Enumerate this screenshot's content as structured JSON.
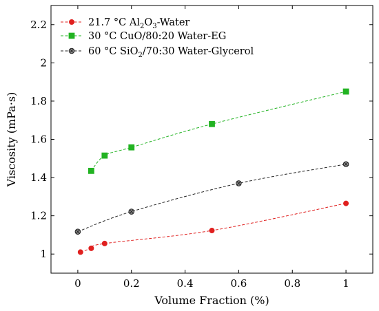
{
  "chart_data": {
    "type": "line",
    "xlabel": "Volume Fraction (%)",
    "ylabel": "Viscosity (mPa·s)",
    "xlim": [
      -0.1,
      1.1
    ],
    "ylim": [
      0.9,
      2.3
    ],
    "x_ticks": [
      0,
      0.2,
      0.4,
      0.6,
      0.8,
      1
    ],
    "x_tick_labels": [
      "0",
      "0.2",
      "0.4",
      "0.6",
      "0.8",
      "1"
    ],
    "y_ticks": [
      1.0,
      1.2,
      1.4,
      1.6,
      1.8,
      2.0,
      2.2
    ],
    "y_tick_labels": [
      "1",
      "1.2",
      "1.4",
      "1.6",
      "1.8",
      "2",
      "2.2"
    ],
    "grid": false,
    "legend_position": "top-left",
    "series": [
      {
        "name_parts": [
          "21.7 °C Al",
          "2",
          "O",
          "3",
          "-Water"
        ],
        "color": "#e0201f",
        "marker": "circle",
        "x": [
          0.01,
          0.05,
          0.1,
          0.5,
          1.0
        ],
        "y": [
          1.01,
          1.03,
          1.055,
          1.123,
          1.265
        ]
      },
      {
        "name_parts": [
          "30 °C CuO/80:20 Water-EG"
        ],
        "color": "#22b322",
        "marker": "square",
        "x": [
          0.05,
          0.1,
          0.2,
          0.5,
          1.0
        ],
        "y": [
          1.435,
          1.515,
          1.558,
          1.68,
          1.85
        ]
      },
      {
        "name_parts": [
          "60 °C SiO",
          "2",
          "/70:30 Water-Glycerol"
        ],
        "color": "#222222",
        "marker": "otimes",
        "x": [
          0.0,
          0.2,
          0.6,
          1.0
        ],
        "y": [
          1.117,
          1.222,
          1.37,
          1.47
        ]
      }
    ]
  }
}
